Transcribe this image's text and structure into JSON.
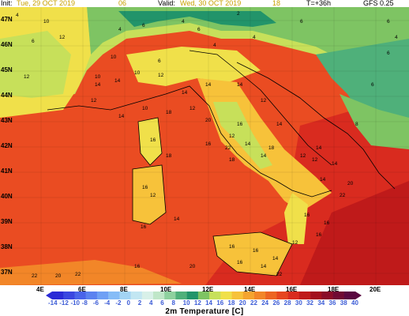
{
  "header": {
    "init_label": "Init:",
    "init_value": "Tue, 29 OCT 2019",
    "init_hour": "06",
    "valid_label": "Valid:",
    "valid_value": "Wed, 30 OCT 2019",
    "valid_hour": "18",
    "lead": "T=+36h",
    "model": "GFS 0.25"
  },
  "latitude_labels": [
    "47N",
    "46N",
    "45N",
    "44N",
    "43N",
    "42N",
    "41N",
    "40N",
    "39N",
    "38N",
    "37N"
  ],
  "longitude_labels": [
    "4E",
    "6E",
    "8E",
    "10E",
    "12E",
    "14E",
    "16E",
    "18E",
    "20E"
  ],
  "colorbar": {
    "title": "2m Temperature [C]",
    "ticks": [
      "-14",
      "-12",
      "-10",
      "-8",
      "-6",
      "-4",
      "-2",
      "0",
      "2",
      "4",
      "6",
      "8",
      "10",
      "12",
      "14",
      "16",
      "18",
      "20",
      "22",
      "24",
      "26",
      "28",
      "30",
      "32",
      "34",
      "36",
      "38",
      "40"
    ],
    "colors": [
      "#2b2bd6",
      "#3a46e0",
      "#4a64ea",
      "#5b82f0",
      "#6fa0f5",
      "#86bcf7",
      "#a3d4f5",
      "#c2e6f2",
      "#d8f0e8",
      "#bfe6c8",
      "#8ed19e",
      "#4fb07a",
      "#22946a",
      "#7ec463",
      "#c7e05a",
      "#f0e04a",
      "#f7c23a",
      "#f5a42f",
      "#f28628",
      "#ed6422",
      "#e6451f",
      "#d92b1f",
      "#bf1a1a",
      "#a3101e",
      "#8a0c28",
      "#700a33",
      "#5a0840"
    ]
  },
  "map_values": [
    {
      "text": "4"
    },
    {
      "text": "10"
    },
    {
      "text": "6"
    },
    {
      "text": "2"
    },
    {
      "text": "4"
    },
    {
      "text": "12"
    },
    {
      "text": "10"
    },
    {
      "text": "10"
    },
    {
      "text": "6"
    },
    {
      "text": "6"
    },
    {
      "text": "4"
    },
    {
      "text": "6"
    },
    {
      "text": "4"
    },
    {
      "text": "4"
    },
    {
      "text": "6"
    },
    {
      "text": "12"
    },
    {
      "text": "14"
    },
    {
      "text": "12"
    },
    {
      "text": "14"
    },
    {
      "text": "10"
    },
    {
      "text": "12"
    },
    {
      "text": "14"
    },
    {
      "text": "14"
    },
    {
      "text": "18"
    },
    {
      "text": "12"
    },
    {
      "text": "14"
    },
    {
      "text": "10"
    },
    {
      "text": "14"
    },
    {
      "text": "12"
    },
    {
      "text": "14"
    },
    {
      "text": "16"
    },
    {
      "text": "12"
    },
    {
      "text": "14"
    },
    {
      "text": "14"
    },
    {
      "text": "12"
    },
    {
      "text": "16"
    },
    {
      "text": "18"
    },
    {
      "text": "18"
    },
    {
      "text": "14"
    },
    {
      "text": "14"
    },
    {
      "text": "20"
    },
    {
      "text": "22"
    },
    {
      "text": "12"
    },
    {
      "text": "14"
    },
    {
      "text": "16"
    },
    {
      "text": "18"
    },
    {
      "text": "16"
    },
    {
      "text": "8"
    },
    {
      "text": "6"
    },
    {
      "text": "6"
    },
    {
      "text": "12"
    },
    {
      "text": "16"
    },
    {
      "text": "14"
    },
    {
      "text": "22"
    },
    {
      "text": "20"
    },
    {
      "text": "22"
    },
    {
      "text": "16"
    },
    {
      "text": "16"
    },
    {
      "text": "20"
    },
    {
      "text": "22"
    },
    {
      "text": "16"
    },
    {
      "text": "14"
    },
    {
      "text": "12"
    },
    {
      "text": "14"
    },
    {
      "text": "16"
    },
    {
      "text": "22"
    },
    {
      "text": "16"
    },
    {
      "text": "20"
    },
    {
      "text": "16"
    },
    {
      "text": "16"
    },
    {
      "text": "6"
    },
    {
      "text": "4"
    }
  ]
}
